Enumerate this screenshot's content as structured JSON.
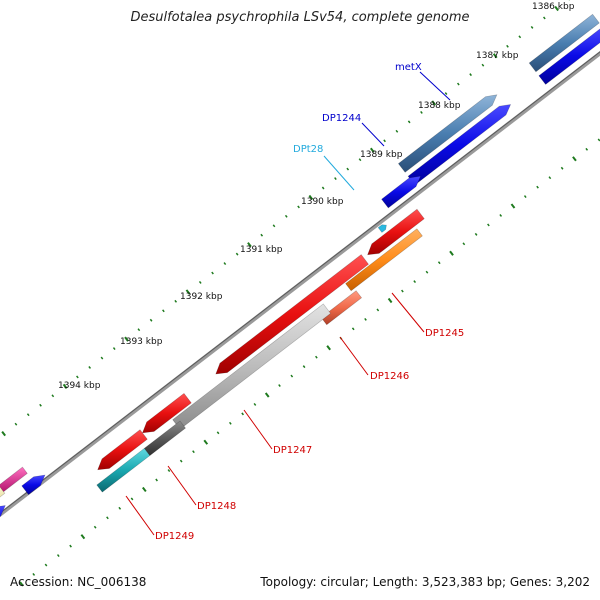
{
  "title": "Desulfotalea psychrophila LSv54, complete genome",
  "footer": {
    "accession": "Accession: NC_006138",
    "summary": "Topology: circular; Length: 3,523,383 bp; Genes: 3,202"
  },
  "kbp_ticks": [
    "1386 kbp",
    "1387 kbp",
    "1388 kbp",
    "1389 kbp",
    "1390 kbp",
    "1391 kbp",
    "1392 kbp",
    "1393 kbp",
    "1394 kbp"
  ],
  "gene_labels": {
    "metX": "metX",
    "DP1244": "DP1244",
    "DPt28": "DPt28",
    "DP1245": "DP1245",
    "DP1246": "DP1246",
    "DP1247": "DP1247",
    "DP1248": "DP1248",
    "DP1249": "DP1249"
  },
  "colors": {
    "backbone": "#8a8a8a",
    "tick_major": "#1e7a1e",
    "tick_minor": "#2a8a2a",
    "cds_forward_blue": "#0a0ae6",
    "feature_steel": "#4a7eb0",
    "cds_reverse_red": "#e81010",
    "cog_orange": "#ff8c1a",
    "cog_salmon": "#f06a4a",
    "cog_gray": "#bcbcbc",
    "cog_darkgray": "#5a5a5a",
    "cog_teal": "#1aa8b0",
    "trna_cyan": "#2ab8e0",
    "label_blue": "#0000cc",
    "label_cyan": "#22aadd",
    "label_red": "#d00000",
    "pink": "#e0208a",
    "yellow": "#efe6a0"
  }
}
